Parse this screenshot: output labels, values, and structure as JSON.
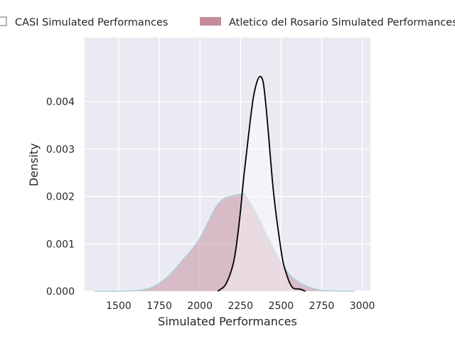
{
  "chart_data": {
    "type": "area",
    "xlabel": "Simulated Performances",
    "ylabel": "Density",
    "xlim": [
      1290,
      3050
    ],
    "ylim": [
      0,
      0.00535
    ],
    "x_ticks": [
      1500,
      1750,
      2000,
      2250,
      2500,
      2750,
      3000
    ],
    "y_ticks": [
      0.0,
      0.001,
      0.002,
      0.003,
      0.004
    ],
    "y_tick_labels": [
      "0.000",
      "0.001",
      "0.002",
      "0.003",
      "0.004"
    ],
    "grid": true,
    "legend_placement": "top",
    "colors": {
      "plot_background": "#eaeaf2",
      "grid": "#ffffff",
      "casi_line": "#000000",
      "casi_fill": "#ffffff",
      "rosario_fill": "#c48c99",
      "rosario_edge": "#a8d0dc",
      "text": "#262626"
    },
    "series": [
      {
        "name": "CASI Simulated Performances",
        "points": [
          [
            2110,
            0.0
          ],
          [
            2130,
            5e-05
          ],
          [
            2150,
            0.0001
          ],
          [
            2170,
            0.00022
          ],
          [
            2190,
            0.0004
          ],
          [
            2210,
            0.00065
          ],
          [
            2230,
            0.0011
          ],
          [
            2250,
            0.0017
          ],
          [
            2270,
            0.0024
          ],
          [
            2290,
            0.003
          ],
          [
            2310,
            0.0036
          ],
          [
            2330,
            0.0041
          ],
          [
            2350,
            0.0044
          ],
          [
            2370,
            0.00453
          ],
          [
            2390,
            0.0044
          ],
          [
            2410,
            0.0038
          ],
          [
            2430,
            0.003
          ],
          [
            2450,
            0.0022
          ],
          [
            2470,
            0.0016
          ],
          [
            2490,
            0.0011
          ],
          [
            2510,
            0.00065
          ],
          [
            2530,
            0.0004
          ],
          [
            2550,
            0.0002
          ],
          [
            2570,
            8e-05
          ],
          [
            2590,
            5e-05
          ],
          [
            2610,
            5e-05
          ],
          [
            2630,
            3e-05
          ],
          [
            2650,
            0.0
          ]
        ]
      },
      {
        "name": "Atletico del Rosario Simulated Performances",
        "points": [
          [
            1350,
            0.0
          ],
          [
            1450,
            0.0
          ],
          [
            1550,
            5e-06
          ],
          [
            1650,
            3e-05
          ],
          [
            1700,
            8e-05
          ],
          [
            1750,
            0.00017
          ],
          [
            1800,
            0.0003
          ],
          [
            1850,
            0.00048
          ],
          [
            1900,
            0.00068
          ],
          [
            1950,
            0.00088
          ],
          [
            2000,
            0.00112
          ],
          [
            2050,
            0.00145
          ],
          [
            2100,
            0.00178
          ],
          [
            2150,
            0.00196
          ],
          [
            2200,
            0.00201
          ],
          [
            2250,
            0.00205
          ],
          [
            2275,
            0.00205
          ],
          [
            2300,
            0.00192
          ],
          [
            2350,
            0.00162
          ],
          [
            2400,
            0.00126
          ],
          [
            2450,
            0.00092
          ],
          [
            2500,
            0.0006
          ],
          [
            2550,
            0.00036
          ],
          [
            2600,
            0.00021
          ],
          [
            2650,
            0.00012
          ],
          [
            2700,
            6e-05
          ],
          [
            2750,
            2e-05
          ],
          [
            2850,
            5e-06
          ],
          [
            2950,
            0.0
          ]
        ]
      }
    ]
  }
}
